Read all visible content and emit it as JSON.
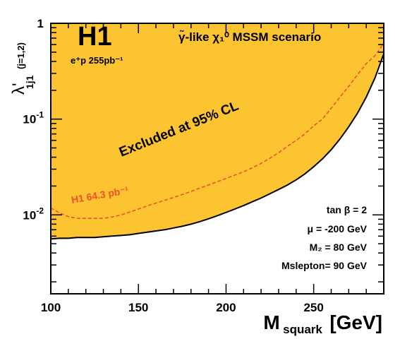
{
  "chart_data": {
    "type": "area",
    "title": "H1",
    "subtitle": "e⁺p 255pb⁻¹",
    "scenario": "γ̃-like  χ₁⁰  MSSM scenario",
    "xlabel": {
      "main": "M",
      "sub": "squark",
      "unit": "[GeV]"
    },
    "ylabel": {
      "main": "λ'",
      "sub": "1j1",
      "sup": "(j=1,2)"
    },
    "x_scale": "linear",
    "y_scale": "log",
    "xlim": [
      100,
      290
    ],
    "ylim": [
      0.0015,
      1
    ],
    "x_ticks": [
      {
        "value": 100,
        "label": "100"
      },
      {
        "value": 150,
        "label": "150"
      },
      {
        "value": 200,
        "label": "200"
      },
      {
        "value": 250,
        "label": "250"
      }
    ],
    "y_ticks": [
      {
        "value": 0.01,
        "base": "10",
        "exp": "-2"
      },
      {
        "value": 0.1,
        "base": "10",
        "exp": "-1"
      },
      {
        "value": 1,
        "base": "1",
        "exp": ""
      }
    ],
    "grid": false,
    "region_label": "Excluded at 95% CL",
    "fill_color": "#fdc431",
    "series": [
      {
        "name": "",
        "style": "solid",
        "color": "#000000",
        "role": "exclusion limit",
        "x": [
          100,
          105,
          110,
          115,
          120,
          125,
          130,
          135,
          140,
          145,
          150,
          155,
          160,
          165,
          170,
          175,
          180,
          185,
          190,
          195,
          200,
          205,
          210,
          215,
          220,
          225,
          230,
          235,
          240,
          245,
          250,
          255,
          260,
          265,
          270,
          275,
          280,
          285,
          290
        ],
        "y": [
          0.0056,
          0.0057,
          0.0057,
          0.0058,
          0.0058,
          0.0058,
          0.0059,
          0.006,
          0.0061,
          0.0062,
          0.0064,
          0.0066,
          0.0068,
          0.007,
          0.0073,
          0.0076,
          0.008,
          0.0085,
          0.0091,
          0.0098,
          0.0106,
          0.0115,
          0.0125,
          0.0137,
          0.015,
          0.0166,
          0.0184,
          0.0205,
          0.0232,
          0.0268,
          0.0318,
          0.0385,
          0.048,
          0.062,
          0.083,
          0.115,
          0.17,
          0.27,
          0.48
        ]
      },
      {
        "name": "H1 64.3 pb⁻¹",
        "style": "dashed",
        "color": "#f0502a",
        "x": [
          100,
          105,
          110,
          115,
          120,
          125,
          130,
          135,
          140,
          145,
          150,
          155,
          160,
          165,
          170,
          175,
          180,
          185,
          190,
          195,
          200,
          205,
          210,
          215,
          220,
          225,
          230,
          235,
          240,
          245,
          250,
          255,
          260,
          265,
          270,
          275,
          280,
          285,
          290
        ],
        "y": [
          0.0118,
          0.0105,
          0.0096,
          0.0092,
          0.0092,
          0.0092,
          0.0092,
          0.0095,
          0.01,
          0.0107,
          0.0115,
          0.0124,
          0.0133,
          0.0142,
          0.0152,
          0.0163,
          0.0176,
          0.019,
          0.0205,
          0.0222,
          0.024,
          0.026,
          0.0282,
          0.031,
          0.0345,
          0.039,
          0.0445,
          0.052,
          0.06,
          0.07,
          0.085,
          0.1,
          0.13,
          0.17,
          0.22,
          0.29,
          0.38,
          0.46,
          0.62
        ]
      }
    ],
    "annotations": [
      {
        "label": "tan β = 2"
      },
      {
        "label": "μ  = -200 GeV"
      },
      {
        "label": "M₂ = 80 GeV"
      },
      {
        "label": "Mslepton= 90 GeV"
      }
    ]
  }
}
